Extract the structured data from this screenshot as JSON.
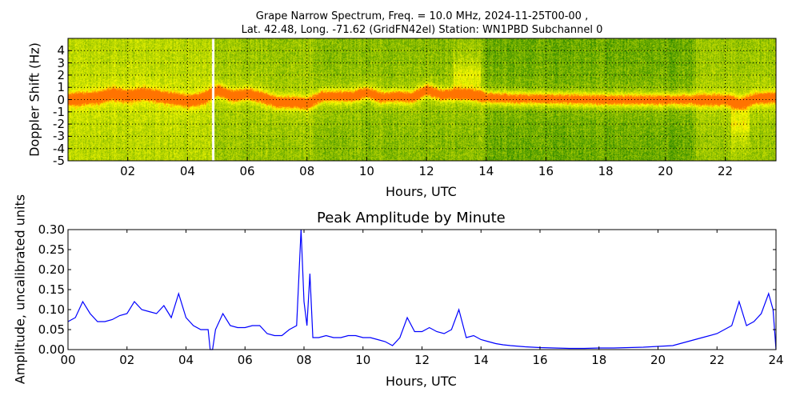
{
  "chart_data": [
    {
      "type": "heatmap",
      "title_line1": "Grape Narrow Spectrum, Freq. = 10.0 MHz, 2024-11-25T00-00 ,",
      "title_line2": "Lat.  42.48, Long. -71.62 (GridFN42el) Station: WN1PBD Subchannel 0",
      "xlabel": "Hours, UTC",
      "ylabel": "Doppler Shift (Hz)",
      "xlim": [
        0,
        23.7
      ],
      "ylim": [
        -5,
        5
      ],
      "xticks": [
        "02",
        "04",
        "06",
        "08",
        "10",
        "12",
        "14",
        "16",
        "18",
        "20",
        "22"
      ],
      "xtick_values": [
        2,
        4,
        6,
        8,
        10,
        12,
        14,
        16,
        18,
        20,
        22
      ],
      "yticks": [
        "4",
        "3",
        "2",
        "1",
        "0",
        "-1",
        "-2",
        "-3",
        "-4",
        "-5"
      ],
      "ytick_values": [
        4,
        3,
        2,
        1,
        0,
        -1,
        -2,
        -3,
        -4,
        -5
      ],
      "grid": true,
      "data_gap_hours": [
        4.8,
        4.9
      ],
      "peak_doppler": {
        "hours": [
          0,
          1,
          1.5,
          2,
          2.5,
          3,
          3.5,
          4,
          4.5,
          5,
          5.5,
          6,
          6.5,
          7,
          7.5,
          8,
          8.5,
          9,
          9.5,
          10,
          10.5,
          11,
          11.5,
          12,
          12.5,
          13,
          13.5,
          14,
          15,
          16,
          18,
          20,
          21,
          22,
          22.5,
          23,
          23.7
        ],
        "hz": [
          0,
          0.2,
          0.5,
          0.3,
          0.5,
          0.3,
          0.1,
          -0.1,
          0.1,
          0.8,
          0.3,
          0.5,
          0.2,
          -0.2,
          -0.2,
          -0.3,
          0.3,
          0.3,
          0.3,
          0.6,
          0.2,
          0.3,
          0.2,
          0.8,
          0.4,
          0.5,
          0.4,
          0.2,
          0.1,
          0.1,
          0,
          0,
          0,
          0,
          -0.3,
          0.1,
          0.2
        ]
      }
    },
    {
      "type": "line",
      "title": "Peak Amplitude by Minute",
      "xlabel": "Hours, UTC",
      "ylabel": "Amplitude, uncalibrated units",
      "xlim": [
        0,
        24
      ],
      "ylim": [
        0,
        0.3
      ],
      "xticks": [
        "00",
        "02",
        "04",
        "06",
        "08",
        "10",
        "12",
        "14",
        "16",
        "18",
        "20",
        "22",
        "24"
      ],
      "xtick_values": [
        0,
        2,
        4,
        6,
        8,
        10,
        12,
        14,
        16,
        18,
        20,
        22,
        24
      ],
      "yticks": [
        "0.30",
        "0.25",
        "0.20",
        "0.15",
        "0.10",
        "0.05",
        "0.00"
      ],
      "ytick_values": [
        0.3,
        0.25,
        0.2,
        0.15,
        0.1,
        0.05,
        0
      ],
      "color": "#0000ff",
      "x": [
        0,
        0.25,
        0.5,
        0.75,
        1,
        1.25,
        1.5,
        1.75,
        2,
        2.25,
        2.5,
        2.75,
        3,
        3.25,
        3.5,
        3.75,
        4,
        4.25,
        4.5,
        4.75,
        4.82,
        4.9,
        5,
        5.25,
        5.5,
        5.75,
        6,
        6.25,
        6.5,
        6.75,
        7,
        7.25,
        7.5,
        7.75,
        7.9,
        8,
        8.1,
        8.2,
        8.3,
        8.5,
        8.75,
        9,
        9.25,
        9.5,
        9.75,
        10,
        10.25,
        10.5,
        10.75,
        11,
        11.25,
        11.5,
        11.75,
        12,
        12.25,
        12.5,
        12.75,
        13,
        13.25,
        13.5,
        13.75,
        14,
        14.25,
        14.5,
        14.75,
        15,
        15.5,
        16,
        16.5,
        17,
        17.5,
        18,
        18.5,
        19,
        19.5,
        20,
        20.5,
        21,
        21.5,
        22,
        22.25,
        22.5,
        22.75,
        23,
        23.25,
        23.5,
        23.75,
        23.9,
        24
      ],
      "y": [
        0.07,
        0.08,
        0.12,
        0.09,
        0.07,
        0.07,
        0.075,
        0.085,
        0.09,
        0.12,
        0.1,
        0.095,
        0.09,
        0.11,
        0.08,
        0.14,
        0.08,
        0.06,
        0.05,
        0.05,
        0.0,
        0.0,
        0.05,
        0.09,
        0.06,
        0.055,
        0.055,
        0.06,
        0.06,
        0.04,
        0.035,
        0.035,
        0.05,
        0.06,
        0.3,
        0.12,
        0.06,
        0.19,
        0.03,
        0.03,
        0.035,
        0.03,
        0.03,
        0.035,
        0.035,
        0.03,
        0.03,
        0.025,
        0.02,
        0.01,
        0.03,
        0.08,
        0.045,
        0.045,
        0.055,
        0.045,
        0.04,
        0.05,
        0.1,
        0.03,
        0.035,
        0.025,
        0.02,
        0.015,
        0.012,
        0.01,
        0.007,
        0.005,
        0.004,
        0.003,
        0.003,
        0.004,
        0.004,
        0.005,
        0.006,
        0.008,
        0.01,
        0.02,
        0.03,
        0.04,
        0.05,
        0.06,
        0.12,
        0.06,
        0.07,
        0.09,
        0.14,
        0.1,
        0.0
      ]
    }
  ]
}
